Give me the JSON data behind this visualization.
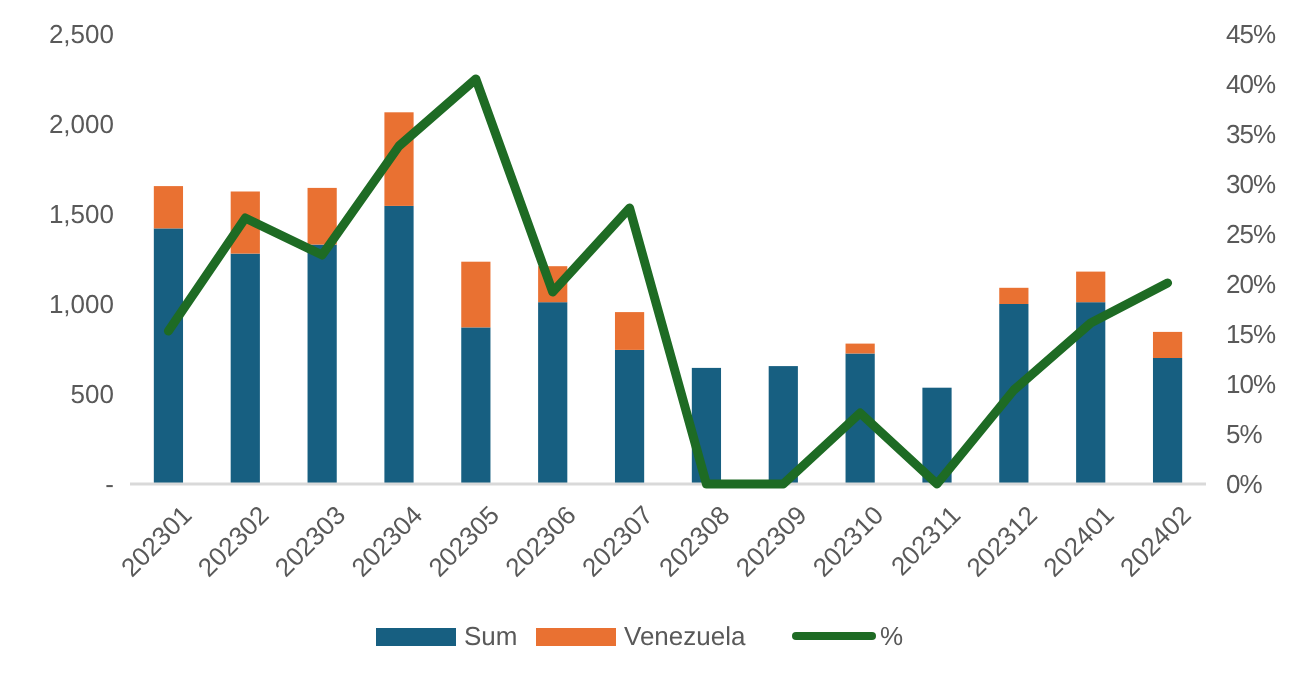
{
  "chart_data": {
    "type": "bar",
    "stacked": true,
    "categories": [
      "202301",
      "202302",
      "202303",
      "202304",
      "202305",
      "202306",
      "202307",
      "202308",
      "202309",
      "202310",
      "202311",
      "202312",
      "202401",
      "202402"
    ],
    "series": [
      {
        "name": "Sum",
        "color": "#175f81",
        "values": [
          1420,
          1280,
          1330,
          1545,
          870,
          1010,
          745,
          645,
          655,
          725,
          535,
          1000,
          1010,
          700
        ]
      },
      {
        "name": "Venezuela",
        "color": "#e97132",
        "values": [
          235,
          345,
          315,
          520,
          365,
          200,
          210,
          null,
          null,
          55,
          null,
          90,
          170,
          145
        ]
      },
      {
        "name": "%",
        "type": "line",
        "axis": "y2",
        "color": "#1e6b24",
        "values": [
          15.3,
          26.6,
          22.9,
          33.8,
          40.5,
          19.2,
          27.6,
          0,
          0,
          7.1,
          0,
          9.4,
          16.1,
          20.1
        ]
      }
    ],
    "ylim": [
      0,
      2500
    ],
    "yticks": [
      {
        "value": 0,
        "label": "-"
      },
      {
        "value": 500,
        "label": "500"
      },
      {
        "value": 1000,
        "label": "1,000"
      },
      {
        "value": 1500,
        "label": "1,500"
      },
      {
        "value": 2000,
        "label": "2,000"
      },
      {
        "value": 2500,
        "label": "2,500"
      }
    ],
    "y2lim": [
      0,
      45
    ],
    "y2ticks": [
      {
        "value": 0,
        "label": "0%"
      },
      {
        "value": 5,
        "label": "5%"
      },
      {
        "value": 10,
        "label": "10%"
      },
      {
        "value": 15,
        "label": "15%"
      },
      {
        "value": 20,
        "label": "20%"
      },
      {
        "value": 25,
        "label": "25%"
      },
      {
        "value": 30,
        "label": "30%"
      },
      {
        "value": 35,
        "label": "35%"
      },
      {
        "value": 40,
        "label": "40%"
      },
      {
        "value": 45,
        "label": "45%"
      }
    ],
    "grid": false,
    "legend": "bottom"
  }
}
